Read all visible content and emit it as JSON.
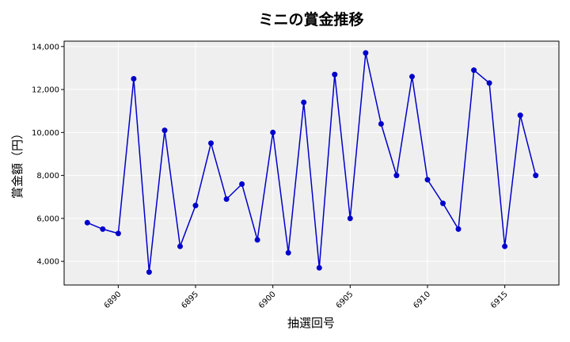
{
  "chart_data": {
    "type": "line",
    "title": "ミニの賞金推移",
    "xlabel": "抽選回号",
    "ylabel": "賞金額（円）",
    "xlim": [
      6886.5,
      6918.5
    ],
    "ylim": [
      2900,
      14250
    ],
    "xticks": [
      6890,
      6895,
      6900,
      6905,
      6910,
      6915
    ],
    "yticks": [
      4000,
      6000,
      8000,
      10000,
      12000,
      14000
    ],
    "ytick_labels": [
      "4,000",
      "6,000",
      "8,000",
      "10,000",
      "12,000",
      "14,000"
    ],
    "grid": true,
    "colors": {
      "line": "#0000cc",
      "marker": "#0000cc",
      "plot_bg": "#efefef",
      "grid": "#ffffff"
    },
    "series": [
      {
        "x": [
          6888,
          6889,
          6890,
          6891,
          6892,
          6893,
          6894,
          6895,
          6896,
          6897,
          6898,
          6899,
          6900,
          6901,
          6902,
          6903,
          6904,
          6905,
          6906,
          6907,
          6908,
          6909,
          6910,
          6911,
          6912,
          6913,
          6914,
          6915,
          6916,
          6917
        ],
        "values": [
          5800,
          5500,
          5300,
          12500,
          3500,
          10100,
          4700,
          6600,
          9500,
          6900,
          7600,
          5000,
          10000,
          4400,
          11400,
          3700,
          12700,
          6000,
          13700,
          10400,
          8000,
          12600,
          7800,
          6700,
          5500,
          12900,
          12300,
          4700,
          10800,
          8000
        ]
      }
    ]
  }
}
